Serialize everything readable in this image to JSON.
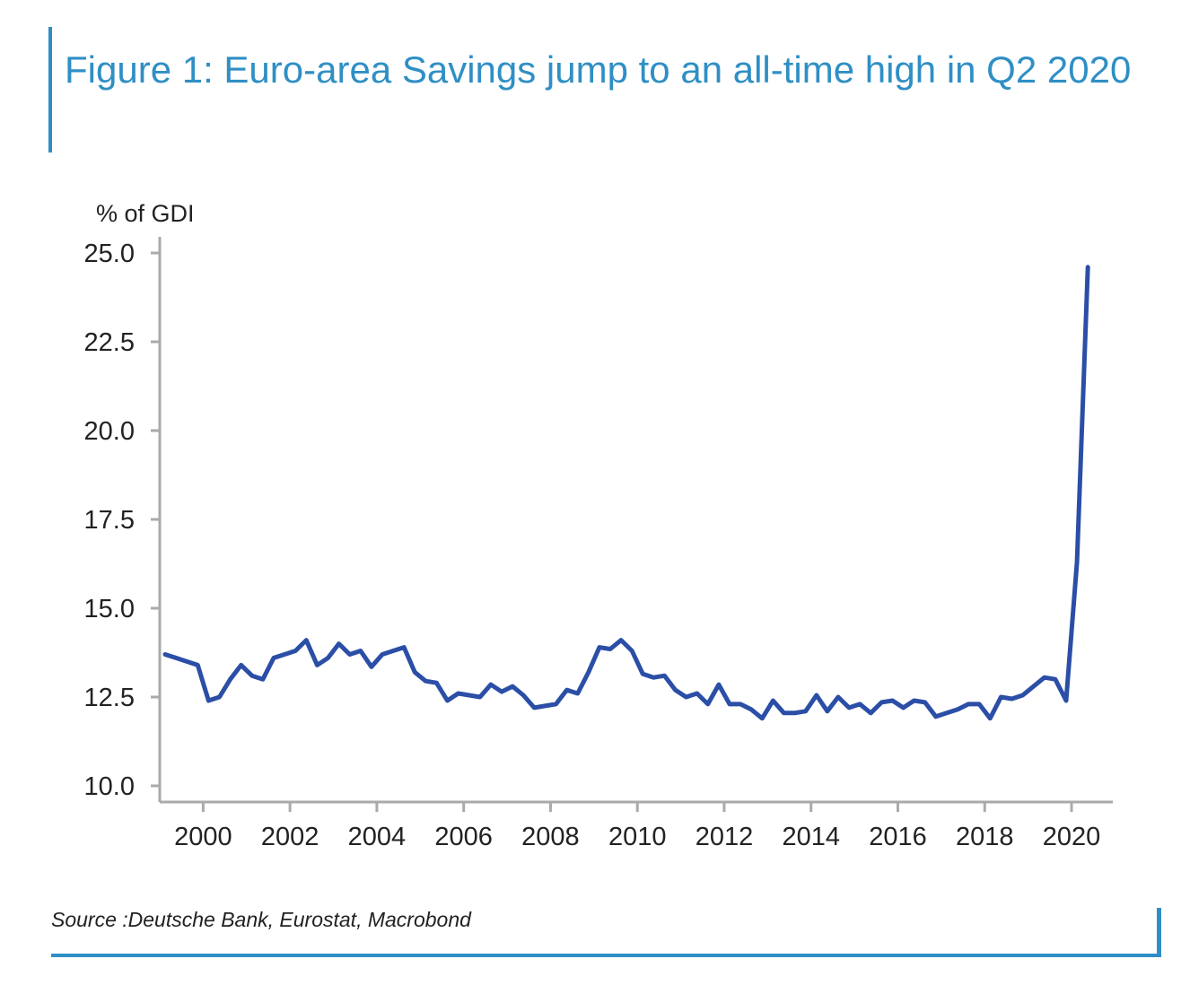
{
  "title": "Figure 1: Euro-area Savings jump to an all-time high in Q2 2020",
  "source": "Source :Deutsche Bank, Eurostat, Macrobond",
  "colors": {
    "accent": "#2f8fc5",
    "series": "#2b4ea6",
    "axis": "#aaaaaa",
    "text": "#222222"
  },
  "chart_data": {
    "type": "line",
    "title": "",
    "xlabel": "",
    "ylabel": "% of GDI",
    "xlim": [
      1999,
      2020.95
    ],
    "ylim": [
      10.0,
      25.0
    ],
    "yticks": [
      10.0,
      12.5,
      15.0,
      17.5,
      20.0,
      22.5,
      25.0
    ],
    "ytick_labels": [
      "10.0",
      "12.5",
      "15.0",
      "17.5",
      "20.0",
      "22.5",
      "25.0"
    ],
    "xticks": [
      2000,
      2002,
      2004,
      2006,
      2008,
      2010,
      2012,
      2014,
      2016,
      2018,
      2020
    ],
    "xtick_labels": [
      "2000",
      "2002",
      "2004",
      "2006",
      "2008",
      "2010",
      "2012",
      "2014",
      "2016",
      "2018",
      "2020"
    ],
    "grid": false,
    "series": [
      {
        "name": "",
        "x": [
          1999.125,
          1999.375,
          1999.625,
          1999.875,
          2000.125,
          2000.375,
          2000.625,
          2000.875,
          2001.125,
          2001.375,
          2001.625,
          2001.875,
          2002.125,
          2002.375,
          2002.625,
          2002.875,
          2003.125,
          2003.375,
          2003.625,
          2003.875,
          2004.125,
          2004.375,
          2004.625,
          2004.875,
          2005.125,
          2005.375,
          2005.625,
          2005.875,
          2006.125,
          2006.375,
          2006.625,
          2006.875,
          2007.125,
          2007.375,
          2007.625,
          2007.875,
          2008.125,
          2008.375,
          2008.625,
          2008.875,
          2009.125,
          2009.375,
          2009.625,
          2009.875,
          2010.125,
          2010.375,
          2010.625,
          2010.875,
          2011.125,
          2011.375,
          2011.625,
          2011.875,
          2012.125,
          2012.375,
          2012.625,
          2012.875,
          2013.125,
          2013.375,
          2013.625,
          2013.875,
          2014.125,
          2014.375,
          2014.625,
          2014.875,
          2015.125,
          2015.375,
          2015.625,
          2015.875,
          2016.125,
          2016.375,
          2016.625,
          2016.875,
          2017.125,
          2017.375,
          2017.625,
          2017.875,
          2018.125,
          2018.375,
          2018.625,
          2018.875,
          2019.125,
          2019.375,
          2019.625,
          2019.875,
          2020.125,
          2020.375
        ],
        "y": [
          13.7,
          13.6,
          13.5,
          13.4,
          12.4,
          12.5,
          13.0,
          13.4,
          13.1,
          13.0,
          13.6,
          13.7,
          13.8,
          14.1,
          13.4,
          13.6,
          14.0,
          13.7,
          13.8,
          13.35,
          13.7,
          13.8,
          13.9,
          13.2,
          12.95,
          12.9,
          12.4,
          12.6,
          12.55,
          12.5,
          12.85,
          12.65,
          12.8,
          12.55,
          12.2,
          12.25,
          12.3,
          12.7,
          12.6,
          13.2,
          13.9,
          13.85,
          14.1,
          13.8,
          13.15,
          13.05,
          13.1,
          12.7,
          12.5,
          12.6,
          12.3,
          12.85,
          12.3,
          12.3,
          12.15,
          11.9,
          12.4,
          12.05,
          12.05,
          12.1,
          12.55,
          12.1,
          12.5,
          12.2,
          12.3,
          12.05,
          12.35,
          12.4,
          12.2,
          12.4,
          12.35,
          11.95,
          12.05,
          12.15,
          12.3,
          12.3,
          11.9,
          12.5,
          12.45,
          12.55,
          12.8,
          13.05,
          13.0,
          12.4,
          16.3,
          24.6
        ]
      }
    ]
  }
}
